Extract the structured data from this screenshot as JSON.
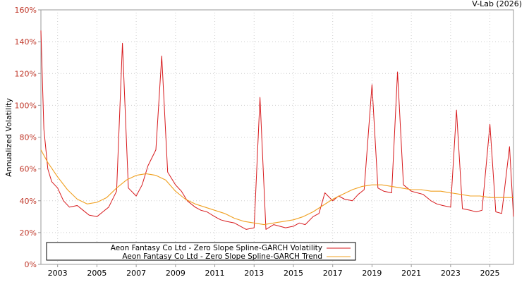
{
  "chart_data": {
    "type": "line",
    "watermark": "V-Lab (2026)",
    "ylabel": "Annualized Volatility",
    "xlabel": "",
    "xlim": [
      2002.15,
      2026.2
    ],
    "ylim": [
      0,
      160
    ],
    "y_ticks": [
      0,
      20,
      40,
      60,
      80,
      100,
      120,
      140,
      160
    ],
    "y_tick_labels": [
      "0%",
      "20%",
      "40%",
      "60%",
      "80%",
      "100%",
      "120%",
      "140%",
      "160%"
    ],
    "x_ticks": [
      2003,
      2005,
      2007,
      2009,
      2011,
      2013,
      2015,
      2017,
      2019,
      2021,
      2023,
      2025
    ],
    "x_tick_labels": [
      "2003",
      "2005",
      "2007",
      "2009",
      "2011",
      "2013",
      "2015",
      "2017",
      "2019",
      "2021",
      "2023",
      "2025"
    ],
    "grid": true,
    "legend_position": "bottom-left",
    "colors": {
      "volatility": "#d7191c",
      "trend": "#f0a020",
      "axis": "#999999",
      "tick_label": "#c0392b"
    },
    "series": [
      {
        "name": "Aeon Fantasy Co Ltd - Zero Slope Spline-GARCH Volatility",
        "color": "#d7191c",
        "x": [
          2002.15,
          2002.3,
          2002.5,
          2002.7,
          2003.0,
          2003.3,
          2003.6,
          2004.0,
          2004.3,
          2004.6,
          2005.0,
          2005.3,
          2005.6,
          2006.0,
          2006.3,
          2006.6,
          2007.0,
          2007.3,
          2007.6,
          2008.0,
          2008.3,
          2008.6,
          2009.0,
          2009.3,
          2009.6,
          2010.0,
          2010.3,
          2010.6,
          2011.0,
          2011.3,
          2011.6,
          2012.0,
          2012.3,
          2012.6,
          2013.0,
          2013.3,
          2013.6,
          2014.0,
          2014.3,
          2014.6,
          2015.0,
          2015.3,
          2015.6,
          2016.0,
          2016.3,
          2016.6,
          2017.0,
          2017.3,
          2017.6,
          2018.0,
          2018.3,
          2018.6,
          2019.0,
          2019.3,
          2019.6,
          2020.0,
          2020.3,
          2020.6,
          2021.0,
          2021.3,
          2021.6,
          2022.0,
          2022.3,
          2022.6,
          2023.0,
          2023.3,
          2023.6,
          2024.0,
          2024.3,
          2024.6,
          2025.0,
          2025.3,
          2025.6,
          2026.0,
          2026.2
        ],
        "values": [
          147,
          85,
          60,
          52,
          48,
          40,
          36,
          37,
          34,
          31,
          30,
          33,
          36,
          46,
          139,
          48,
          43,
          50,
          62,
          72,
          131,
          58,
          50,
          46,
          40,
          36,
          34,
          33,
          30,
          28,
          27,
          26,
          24,
          22,
          23,
          105,
          22,
          25,
          24,
          23,
          24,
          26,
          25,
          30,
          32,
          45,
          40,
          43,
          41,
          40,
          44,
          47,
          113,
          48,
          46,
          45,
          121,
          50,
          46,
          45,
          44,
          40,
          38,
          37,
          36,
          97,
          35,
          34,
          33,
          34,
          88,
          33,
          32,
          74,
          30
        ]
      },
      {
        "name": "Aeon Fantasy Co Ltd - Zero Slope Spline-GARCH Trend",
        "color": "#f0a020",
        "x": [
          2002.15,
          2002.5,
          2003.0,
          2003.5,
          2004.0,
          2004.5,
          2005.0,
          2005.5,
          2006.0,
          2006.5,
          2007.0,
          2007.5,
          2008.0,
          2008.5,
          2009.0,
          2009.5,
          2010.0,
          2010.5,
          2011.0,
          2011.5,
          2012.0,
          2012.5,
          2013.0,
          2013.5,
          2014.0,
          2014.5,
          2015.0,
          2015.5,
          2016.0,
          2016.5,
          2017.0,
          2017.5,
          2018.0,
          2018.5,
          2019.0,
          2019.5,
          2020.0,
          2020.5,
          2021.0,
          2021.5,
          2022.0,
          2022.5,
          2023.0,
          2023.5,
          2024.0,
          2024.5,
          2025.0,
          2025.5,
          2026.0,
          2026.2
        ],
        "values": [
          72,
          64,
          55,
          47,
          41,
          38,
          39,
          42,
          48,
          53,
          56,
          57,
          56,
          53,
          46,
          41,
          38,
          36,
          34,
          32,
          29,
          27,
          26,
          25,
          26,
          27,
          28,
          30,
          33,
          37,
          41,
          44,
          47,
          49,
          50,
          50,
          49,
          48,
          47,
          47,
          46,
          46,
          45,
          44,
          43,
          43,
          42,
          42,
          42,
          42
        ]
      }
    ]
  }
}
